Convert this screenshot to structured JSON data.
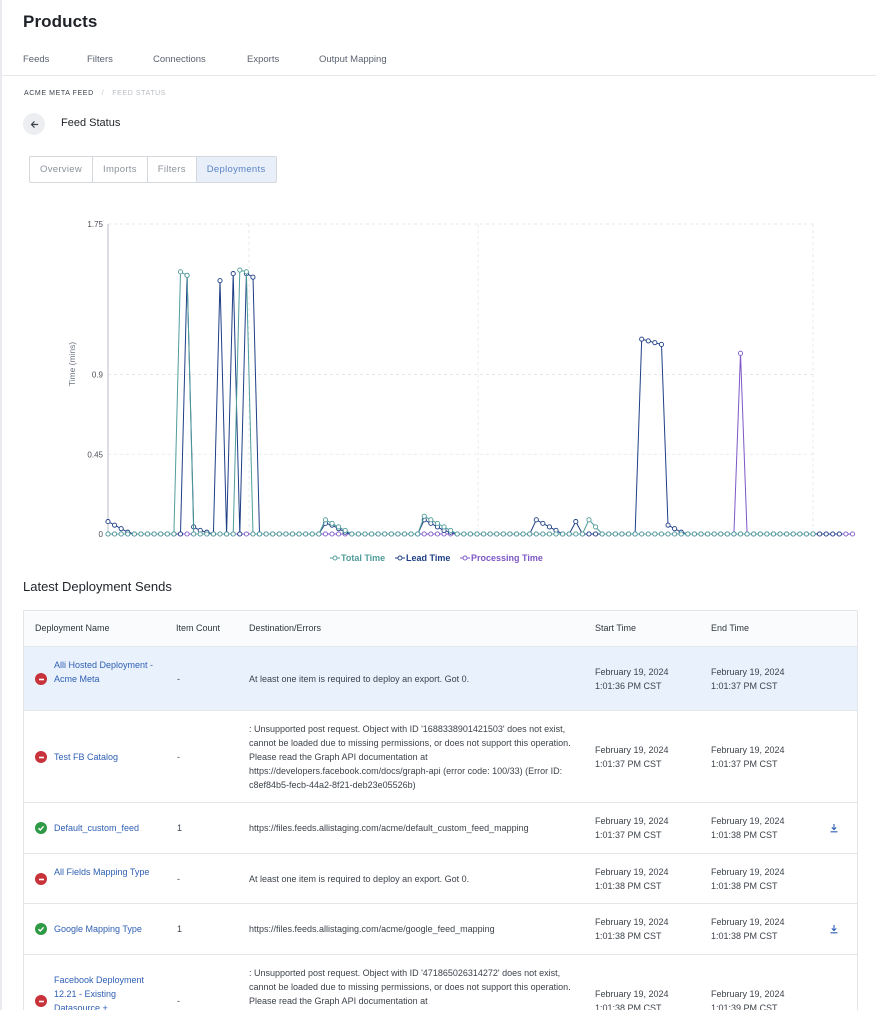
{
  "page": {
    "title": "Products"
  },
  "main_tabs": [
    {
      "label": "Feeds",
      "active": true
    },
    {
      "label": "Filters",
      "active": false
    },
    {
      "label": "Connections",
      "active": false
    },
    {
      "label": "Exports",
      "active": false
    },
    {
      "label": "Output Mapping",
      "active": false
    }
  ],
  "breadcrumb": {
    "parent": "ACME META FEED",
    "separator": "/",
    "current": "FEED STATUS"
  },
  "section": {
    "title": "Feed Status",
    "back_icon": "arrow-left-icon"
  },
  "sub_tabs": [
    {
      "label": "Overview",
      "active": false
    },
    {
      "label": "Imports",
      "active": false
    },
    {
      "label": "Filters",
      "active": false
    },
    {
      "label": "Deployments",
      "active": true
    }
  ],
  "chart_data": {
    "type": "line",
    "title": "",
    "xlabel": "",
    "ylabel": "Time (mins)",
    "ylim": [
      0,
      1.75
    ],
    "y_ticks": [
      "0",
      "0.45",
      "0.9",
      "1.75"
    ],
    "grid": true,
    "legend_position": "bottom-center",
    "series": [
      {
        "name": "Total Time",
        "color": "#4f9c9a",
        "values": [
          0,
          0,
          0,
          0,
          0,
          0,
          0,
          0,
          0,
          0,
          0,
          1.48,
          1.46,
          0,
          0,
          0,
          0,
          0,
          0,
          0,
          1.49,
          1.48,
          0,
          0,
          0,
          0,
          0,
          0,
          0,
          0,
          0,
          0,
          0,
          0.08,
          0.06,
          0.04,
          0.02,
          0,
          0,
          0,
          0,
          0,
          0,
          0,
          0,
          0,
          0,
          0,
          0.1,
          0.08,
          0.06,
          0.04,
          0.02,
          0,
          0,
          0,
          0,
          0,
          0,
          0,
          0,
          0,
          0,
          0,
          0,
          0,
          0,
          0,
          0,
          0,
          0,
          0,
          0,
          0.08,
          0.04,
          0,
          0,
          0,
          0,
          0,
          0,
          0,
          0,
          0,
          0,
          0,
          0,
          0,
          0,
          0,
          0,
          0,
          0,
          0,
          0,
          0,
          0,
          0,
          0,
          0,
          0,
          0,
          0,
          0,
          0,
          0,
          0,
          0
        ]
      },
      {
        "name": "Lead Time",
        "color": "#1f3f85",
        "values": [
          0.07,
          0.05,
          0.03,
          0.01,
          0,
          0,
          0,
          0,
          0,
          0,
          0,
          0,
          1.46,
          0.04,
          0.02,
          0.01,
          0,
          1.43,
          0,
          1.47,
          0,
          1.47,
          1.45,
          0,
          0,
          0,
          0,
          0,
          0,
          0,
          0,
          0,
          0,
          0.06,
          0.05,
          0.03,
          0.01,
          0,
          0,
          0,
          0,
          0,
          0,
          0,
          0,
          0,
          0,
          0,
          0.08,
          0.06,
          0.04,
          0.02,
          0.01,
          0,
          0,
          0,
          0,
          0,
          0,
          0,
          0,
          0,
          0,
          0,
          0,
          0.08,
          0.06,
          0.04,
          0.02,
          0,
          0,
          0.07,
          0,
          0,
          0,
          0,
          0,
          0,
          0,
          0,
          0,
          1.1,
          1.09,
          1.08,
          1.07,
          0.05,
          0.03,
          0.01,
          0,
          0,
          0,
          0,
          0,
          0,
          0,
          0,
          0,
          0,
          0,
          0,
          0,
          0,
          0,
          0,
          0,
          0,
          0,
          0,
          0,
          0,
          0,
          0
        ]
      },
      {
        "name": "Processing Time",
        "color": "#7d57c6",
        "values": [
          0,
          0,
          0,
          0,
          0,
          0,
          0,
          0,
          0,
          0,
          0,
          0,
          0,
          0,
          0,
          0,
          0,
          0,
          0,
          0,
          0,
          0,
          0,
          0,
          0,
          0,
          0,
          0,
          0,
          0,
          0,
          0,
          0,
          0,
          0,
          0,
          0,
          0,
          0,
          0,
          0,
          0,
          0,
          0,
          0,
          0,
          0,
          0,
          0,
          0,
          0,
          0,
          0,
          0,
          0,
          0,
          0,
          0,
          0,
          0,
          0,
          0,
          0,
          0,
          0,
          0,
          0,
          0,
          0,
          0,
          0,
          0,
          0,
          0,
          0,
          0,
          0,
          0,
          0,
          0,
          0,
          0,
          0,
          0,
          0,
          0,
          0,
          0,
          0,
          0,
          0,
          0,
          0,
          0,
          0,
          0,
          1.02,
          0,
          0,
          0,
          0,
          0,
          0,
          0,
          0,
          0,
          0,
          0,
          0,
          0,
          0,
          0,
          0,
          0
        ]
      }
    ]
  },
  "table": {
    "title": "Latest Deployment Sends",
    "columns": [
      "Deployment Name",
      "Item Count",
      "Destination/Errors",
      "Start Time",
      "End Time"
    ],
    "rows": [
      {
        "status": "error",
        "name": "Alli Hosted Deployment - Acme Meta",
        "count": "-",
        "destination": "At least one item is required to deploy an export. Got 0.",
        "start": "February 19, 2024 1:01:36 PM CST",
        "end": "February 19, 2024 1:01:37 PM CST",
        "download": false
      },
      {
        "status": "error",
        "name": "Test FB Catalog",
        "count": "-",
        "destination": ": Unsupported post request. Object with ID '1688338901421503' does not exist, cannot be loaded due to missing permissions, or does not support this operation. Please read the Graph API documentation at https://developers.facebook.com/docs/graph-api (error code: 100/33) (Error ID: c8ef84b5-fecb-44a2-8f21-deb23e05526b)",
        "start": "February 19, 2024 1:01:37 PM CST",
        "end": "February 19, 2024 1:01:37 PM CST",
        "download": false
      },
      {
        "status": "success",
        "name": "Default_custom_feed",
        "count": "1",
        "destination": "https://files.feeds.allistaging.com/acme/default_custom_feed_mapping",
        "start": "February 19, 2024 1:01:37 PM CST",
        "end": "February 19, 2024 1:01:38 PM CST",
        "download": true
      },
      {
        "status": "error",
        "name": "All Fields Mapping Type",
        "count": "-",
        "destination": "At least one item is required to deploy an export. Got 0.",
        "start": "February 19, 2024 1:01:38 PM CST",
        "end": "February 19, 2024 1:01:38 PM CST",
        "download": false
      },
      {
        "status": "success",
        "name": "Google Mapping Type",
        "count": "1",
        "destination": "https://files.feeds.allistaging.com/acme/google_feed_mapping",
        "start": "February 19, 2024 1:01:38 PM CST",
        "end": "February 19, 2024 1:01:38 PM CST",
        "download": true
      },
      {
        "status": "error",
        "name": "Facebook Deployment 12.21 - Existing Datasource +",
        "count": "-",
        "destination": ": Unsupported post request. Object with ID '471865026314272' does not exist, cannot be loaded due to missing permissions, or does not support this operation. Please read the Graph API documentation at",
        "start": "February 19, 2024 1:01:38 PM CST",
        "end": "February 19, 2024 1:01:39 PM CST",
        "download": false
      }
    ]
  }
}
